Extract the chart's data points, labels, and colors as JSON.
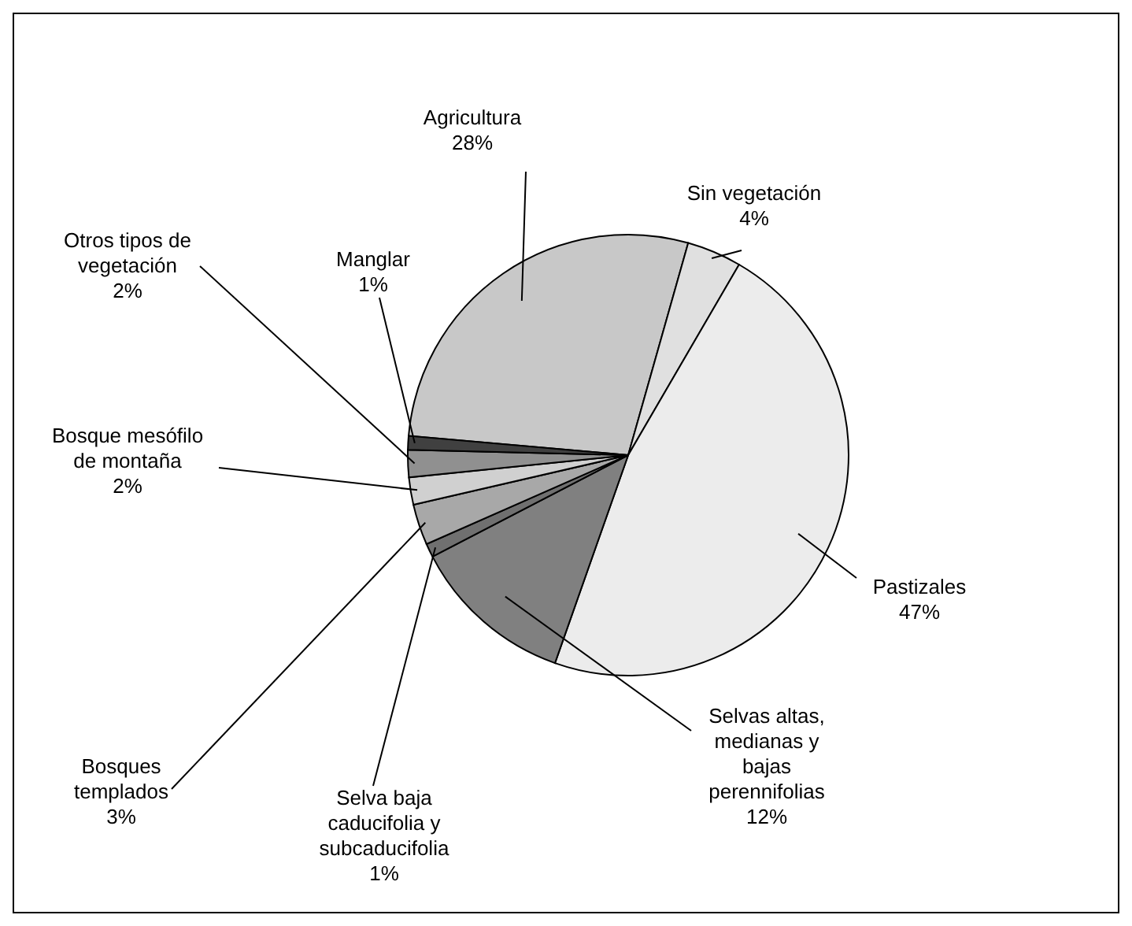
{
  "chart_data": {
    "type": "pie",
    "categories": [
      "Agricultura",
      "Sin vegetación",
      "Pastizales",
      "Selvas altas, medianas y bajas perennifolias",
      "Selva baja caducifolia y subcaducifolia",
      "Bosques templados",
      "Bosque mesófilo de montaña",
      "Otros tipos de vegetación",
      "Manglar"
    ],
    "values": [
      28,
      4,
      47,
      12,
      1,
      3,
      2,
      2,
      1
    ],
    "colors": [
      "#c8c8c8",
      "#e0e0e0",
      "#ececec",
      "#808080",
      "#707070",
      "#a8a8a8",
      "#d0d0d0",
      "#909090",
      "#404040"
    ],
    "value_labels": [
      "28%",
      "4%",
      "47%",
      "12%",
      "1%",
      "3%",
      "2%",
      "2%",
      "1%"
    ],
    "legend": false
  }
}
